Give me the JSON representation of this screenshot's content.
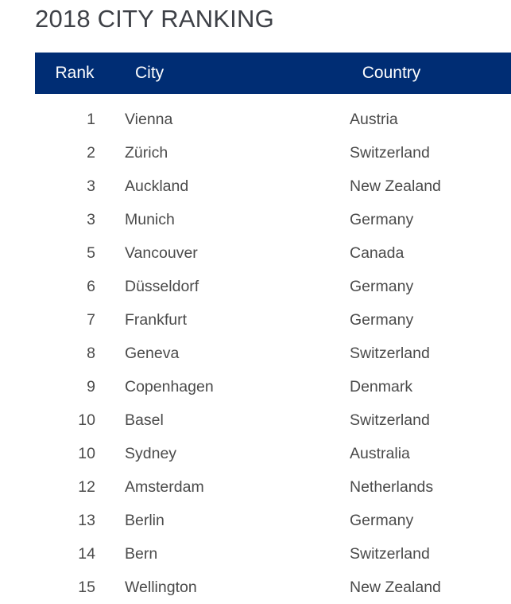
{
  "title": "2018 CITY RANKING",
  "table": {
    "headers": {
      "rank": "Rank",
      "city": "City",
      "country": "Country"
    },
    "header_bg": "#002d74",
    "rows": [
      {
        "rank": "1",
        "city": "Vienna",
        "country": "Austria"
      },
      {
        "rank": "2",
        "city": "Zürich",
        "country": "Switzerland"
      },
      {
        "rank": "3",
        "city": "Auckland",
        "country": "New Zealand"
      },
      {
        "rank": "3",
        "city": "Munich",
        "country": "Germany"
      },
      {
        "rank": "5",
        "city": "Vancouver",
        "country": "Canada"
      },
      {
        "rank": "6",
        "city": "Düsseldorf",
        "country": "Germany"
      },
      {
        "rank": "7",
        "city": "Frankfurt",
        "country": "Germany"
      },
      {
        "rank": "8",
        "city": "Geneva",
        "country": "Switzerland"
      },
      {
        "rank": "9",
        "city": "Copenhagen",
        "country": "Denmark"
      },
      {
        "rank": "10",
        "city": "Basel",
        "country": "Switzerland"
      },
      {
        "rank": "10",
        "city": "Sydney",
        "country": "Australia"
      },
      {
        "rank": "12",
        "city": "Amsterdam",
        "country": "Netherlands"
      },
      {
        "rank": "13",
        "city": "Berlin",
        "country": "Germany"
      },
      {
        "rank": "14",
        "city": "Bern",
        "country": "Switzerland"
      },
      {
        "rank": "15",
        "city": "Wellington",
        "country": "New Zealand"
      }
    ]
  }
}
